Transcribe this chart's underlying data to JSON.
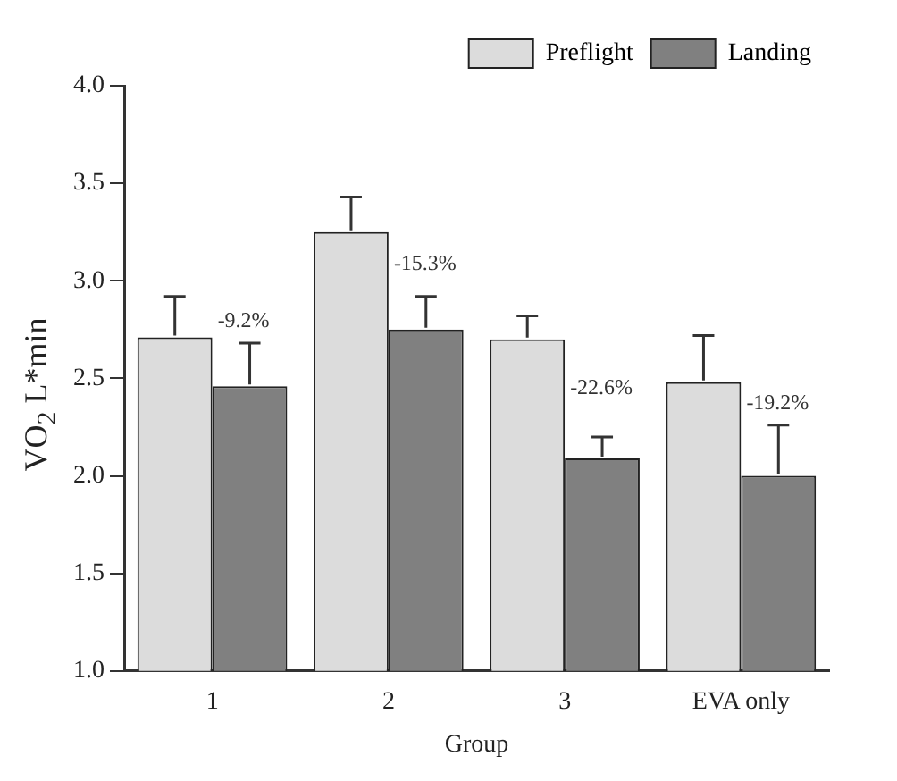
{
  "chart_data": {
    "type": "bar",
    "xlabel": "Group",
    "ylabel": "VO$_{2}$ L*min",
    "categories": [
      "1",
      "2",
      "3",
      "EVA only"
    ],
    "series": [
      {
        "name": "Preflight",
        "color": "#dcdcdc",
        "values": [
          2.71,
          3.25,
          2.7,
          2.48
        ],
        "errors": [
          0.21,
          0.18,
          0.12,
          0.24
        ]
      },
      {
        "name": "Landing",
        "color": "#808080",
        "values": [
          2.46,
          2.75,
          2.09,
          2.0
        ],
        "errors": [
          0.22,
          0.17,
          0.11,
          0.26
        ]
      }
    ],
    "ylim": [
      1.0,
      4.0
    ],
    "yticks": [
      {
        "value": 1.0,
        "label": "1.0"
      },
      {
        "value": 1.5,
        "label": "1.5"
      },
      {
        "value": 2.0,
        "label": "2.0"
      },
      {
        "value": 2.5,
        "label": "2.5"
      },
      {
        "value": 3.0,
        "label": "3.0"
      },
      {
        "value": 3.5,
        "label": "3.5"
      },
      {
        "value": 4.0,
        "label": "4.0"
      }
    ],
    "annotations": [
      "-9.2%",
      "-15.3%",
      "-22.6%",
      "-19.2%"
    ],
    "grid": false,
    "legend": "top right"
  }
}
